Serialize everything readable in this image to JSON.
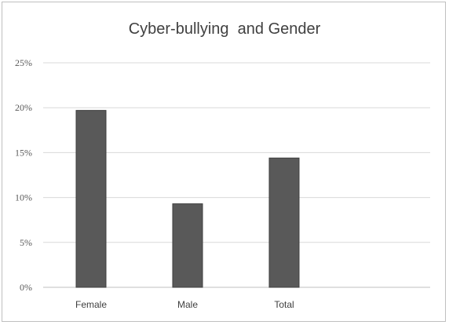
{
  "chart_data": {
    "type": "bar",
    "title": "Cyber-bullying  and Gender",
    "categories": [
      "Female",
      "Male",
      "Total"
    ],
    "values": [
      19.7,
      9.3,
      14.4
    ],
    "unit": "%",
    "ylim": [
      0,
      25
    ],
    "yticks": [
      "0%",
      "5%",
      "10%",
      "15%",
      "20%",
      "25%"
    ],
    "xlabel": "",
    "ylabel": "",
    "grid": true,
    "legend": "none",
    "colors": {
      "bar": "#595959",
      "bar_edge": "#3f3f3f",
      "grid": "#d9d9d9",
      "axis": "#bfbfbf"
    }
  }
}
